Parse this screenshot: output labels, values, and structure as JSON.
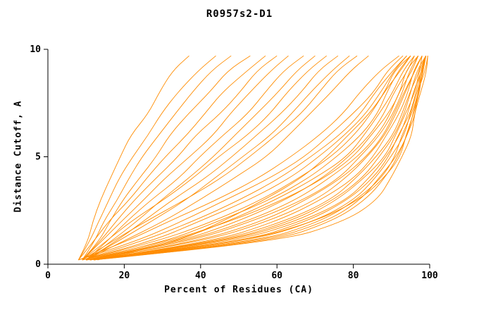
{
  "chart_data": {
    "type": "line",
    "title": "R0957s2-D1",
    "xlabel": "Percent of Residues (CA)",
    "ylabel": "Distance Cutoff, A",
    "xlim": [
      0,
      100
    ],
    "ylim": [
      0,
      10
    ],
    "x_ticks": [
      0,
      20,
      40,
      60,
      80,
      100
    ],
    "y_ticks": [
      0,
      5,
      10
    ],
    "grid": false,
    "legend": "none",
    "line_color": "#ff8c00",
    "axis_color": "#000000",
    "y_values": [
      0.2,
      1,
      2,
      3,
      4,
      5,
      6,
      7,
      8,
      9,
      9.7
    ],
    "series_x_at_y": [
      [
        8,
        10,
        12,
        14,
        16,
        19,
        22,
        26,
        29,
        33,
        37
      ],
      [
        8,
        11,
        13,
        16,
        19,
        22,
        26,
        30,
        34,
        39,
        44
      ],
      [
        9,
        12,
        15,
        18,
        21,
        25,
        29,
        33,
        38,
        43,
        48
      ],
      [
        9,
        13,
        16,
        20,
        24,
        28,
        32,
        37,
        42,
        47,
        53
      ],
      [
        8,
        12,
        16,
        21,
        26,
        31,
        36,
        41,
        46,
        52,
        57
      ],
      [
        9,
        13,
        18,
        23,
        28,
        34,
        39,
        45,
        50,
        55,
        60
      ],
      [
        9,
        14,
        19,
        25,
        31,
        37,
        43,
        48,
        53,
        58,
        63
      ],
      [
        10,
        15,
        21,
        27,
        34,
        40,
        46,
        52,
        57,
        62,
        67
      ],
      [
        10,
        16,
        23,
        30,
        37,
        43,
        49,
        55,
        60,
        65,
        70
      ],
      [
        9,
        15,
        22,
        30,
        38,
        45,
        52,
        58,
        63,
        68,
        73
      ],
      [
        10,
        17,
        25,
        33,
        41,
        48,
        55,
        61,
        66,
        71,
        76
      ],
      [
        10,
        18,
        27,
        36,
        44,
        51,
        58,
        64,
        69,
        74,
        79
      ],
      [
        9,
        16,
        26,
        36,
        45,
        53,
        60,
        66,
        71,
        76,
        81
      ],
      [
        10,
        19,
        30,
        40,
        49,
        57,
        63,
        69,
        74,
        79,
        84
      ],
      [
        8,
        20,
        32,
        44,
        55,
        64,
        71,
        77,
        82,
        87,
        92
      ],
      [
        8,
        22,
        35,
        47,
        58,
        67,
        74,
        80,
        85,
        89,
        93
      ],
      [
        9,
        24,
        38,
        50,
        61,
        69,
        76,
        82,
        86,
        90,
        94
      ],
      [
        9,
        26,
        40,
        53,
        63,
        71,
        78,
        83,
        87,
        91,
        94
      ],
      [
        9,
        28,
        43,
        56,
        66,
        74,
        80,
        85,
        88,
        92,
        95
      ],
      [
        10,
        30,
        45,
        58,
        68,
        76,
        82,
        86,
        89,
        92,
        95
      ],
      [
        10,
        32,
        47,
        60,
        70,
        78,
        83,
        87,
        90,
        93,
        96
      ],
      [
        10,
        34,
        50,
        62,
        72,
        79,
        84,
        88,
        91,
        94,
        96
      ],
      [
        9,
        30,
        48,
        62,
        72,
        80,
        85,
        89,
        92,
        94,
        97
      ],
      [
        10,
        35,
        52,
        65,
        74,
        81,
        86,
        90,
        92,
        95,
        97
      ],
      [
        10,
        36,
        54,
        67,
        76,
        82,
        87,
        90,
        93,
        95,
        97
      ],
      [
        11,
        38,
        56,
        68,
        77,
        83,
        88,
        91,
        93,
        96,
        98
      ],
      [
        10,
        40,
        58,
        70,
        78,
        84,
        88,
        91,
        94,
        96,
        98
      ],
      [
        11,
        42,
        60,
        72,
        80,
        85,
        89,
        92,
        94,
        96,
        98
      ],
      [
        11,
        44,
        62,
        74,
        81,
        86,
        90,
        93,
        95,
        97,
        98
      ],
      [
        10,
        45,
        64,
        75,
        82,
        87,
        91,
        93,
        95,
        97,
        99
      ],
      [
        11,
        46,
        65,
        76,
        83,
        88,
        91,
        94,
        96,
        97,
        99
      ],
      [
        11,
        48,
        67,
        78,
        84,
        89,
        92,
        94,
        96,
        98,
        99
      ],
      [
        12,
        50,
        68,
        79,
        85,
        89,
        92,
        95,
        96,
        98,
        99
      ],
      [
        12,
        52,
        70,
        80,
        86,
        90,
        93,
        95,
        97,
        98,
        99
      ],
      [
        11,
        54,
        72,
        81,
        87,
        91,
        93,
        95,
        97,
        98,
        99
      ],
      [
        12,
        56,
        73,
        82,
        87,
        91,
        94,
        96,
        97,
        98,
        99
      ],
      [
        12,
        58,
        75,
        83,
        88,
        92,
        94,
        96,
        97,
        99,
        99.5
      ],
      [
        10,
        50,
        70,
        82,
        88,
        92,
        94,
        96,
        97,
        98,
        99
      ],
      [
        11,
        60,
        78,
        86,
        90,
        93,
        95,
        96,
        98,
        99,
        99.5
      ],
      [
        13,
        33,
        46,
        57,
        66,
        73,
        79,
        84,
        88,
        91,
        95
      ]
    ]
  }
}
